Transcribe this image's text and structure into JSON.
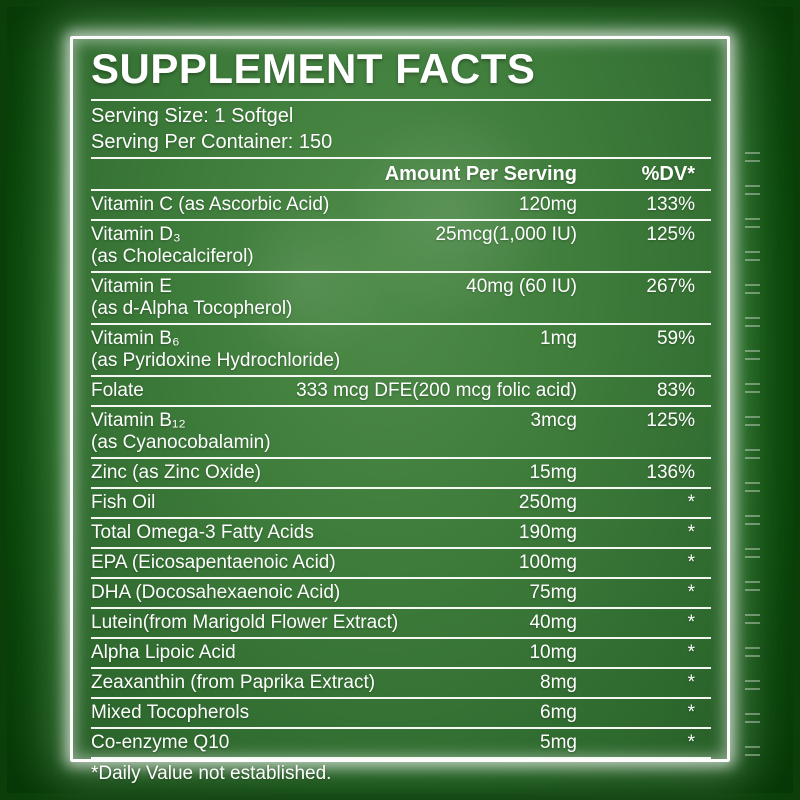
{
  "panel": {
    "title": "SUPPLEMENT FACTS",
    "serving_size": "Serving Size: 1 Softgel",
    "servings_per_container": "Serving Per Container: 150"
  },
  "table": {
    "columns": {
      "amount": "Amount Per Serving",
      "dv": "%DV*"
    },
    "rows": [
      {
        "name": "Vitamin C (as Ascorbic Acid)",
        "amount": "120mg",
        "dv": "133%"
      },
      {
        "name": "Vitamin D₃",
        "sub": "(as Cholecalciferol)",
        "amount": "25mcg(1,000 IU)",
        "dv": "125%"
      },
      {
        "name": "Vitamin E",
        "sub": "(as d-Alpha Tocopherol)",
        "amount": "40mg (60 IU)",
        "dv": "267%"
      },
      {
        "name": "Vitamin B₆",
        "sub": "(as Pyridoxine Hydrochloride)",
        "amount": "1mg",
        "dv": "59%"
      },
      {
        "name": "Folate",
        "amount": "333 mcg DFE(200 mcg folic acid)",
        "dv": "83%"
      },
      {
        "name": "Vitamin B₁₂",
        "sub": "(as Cyanocobalamin)",
        "amount": "3mcg",
        "dv": "125%"
      },
      {
        "name": "Zinc (as Zinc Oxide)",
        "amount": "15mg",
        "dv": "136%"
      },
      {
        "name": "Fish Oil",
        "amount": "250mg",
        "dv": "*"
      },
      {
        "name": "Total Omega-3 Fatty Acids",
        "amount": "190mg",
        "dv": "*"
      },
      {
        "name": "EPA (Eicosapentaenoic Acid)",
        "amount": "100mg",
        "dv": "*"
      },
      {
        "name": "DHA (Docosahexaenoic Acid)",
        "amount": "75mg",
        "dv": "*"
      },
      {
        "name": "Lutein(from Marigold Flower Extract)",
        "amount": "40mg",
        "dv": "*"
      },
      {
        "name": "Alpha Lipoic Acid",
        "amount": "10mg",
        "dv": "*"
      },
      {
        "name": "Zeaxanthin (from Paprika Extract)",
        "amount": "8mg",
        "dv": "*"
      },
      {
        "name": "Mixed Tocopherols",
        "amount": "6mg",
        "dv": "*"
      },
      {
        "name": "Co-enzyme Q10",
        "amount": "5mg",
        "dv": "*"
      }
    ]
  },
  "footnote": "*Daily Value not established.",
  "colors": {
    "label_green": "#3d7b3a",
    "frame_green": "#0d4d0d",
    "border_white": "#fdfdfd",
    "text": "#ffffff"
  }
}
